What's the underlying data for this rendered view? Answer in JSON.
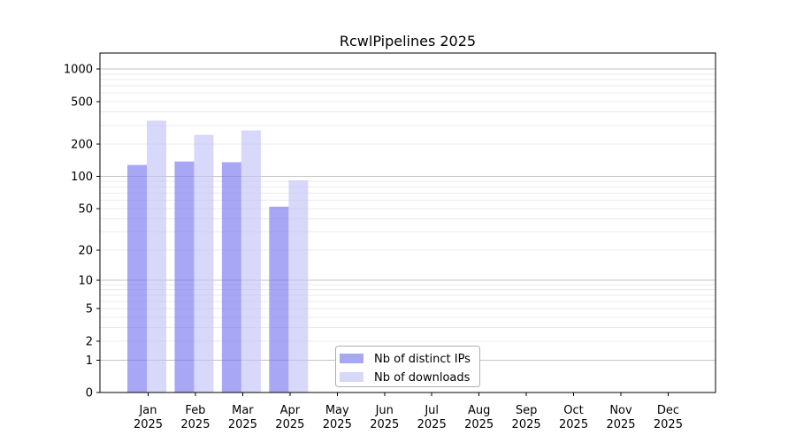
{
  "chart_data": {
    "type": "bar",
    "title": "RcwlPipelines 2025",
    "year": "2025",
    "categories": [
      "Jan",
      "Feb",
      "Mar",
      "Apr",
      "May",
      "Jun",
      "Jul",
      "Aug",
      "Sep",
      "Oct",
      "Nov",
      "Dec"
    ],
    "series": [
      {
        "name": "Nb of distinct IPs",
        "fill": "rgba(120,120,240,0.65)",
        "legend_color": "#a8a8f0",
        "values": [
          128,
          138,
          136,
          52,
          0,
          0,
          0,
          0,
          0,
          0,
          0,
          0
        ]
      },
      {
        "name": "Nb of downloads",
        "fill": "rgba(195,195,248,0.65)",
        "legend_color": "#d8d8f8",
        "values": [
          332,
          245,
          269,
          92,
          0,
          0,
          0,
          0,
          0,
          0,
          0,
          0
        ]
      }
    ],
    "y_ticks": [
      0,
      1,
      2,
      5,
      10,
      20,
      50,
      100,
      200,
      500,
      1000
    ],
    "yscale": "log1p",
    "ylim": [
      0,
      1410
    ],
    "grid": true,
    "legend_position": "bottom-center",
    "colors": {
      "grid_major": "#c4c4c4",
      "grid_minor": "#ebebeb",
      "axis": "#000000",
      "legend_border": "#b0b0b0",
      "legend_background": "#ffffff"
    }
  }
}
